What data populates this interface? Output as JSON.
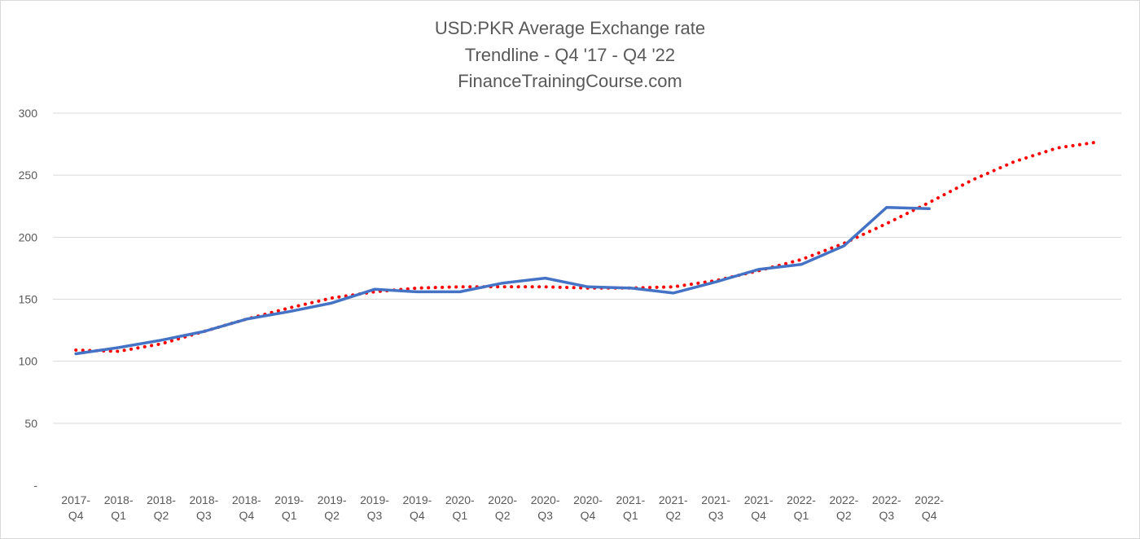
{
  "chart_data": {
    "type": "line",
    "title_lines": [
      "USD:PKR Average Exchange rate",
      "Trendline - Q4 '17 - Q4 '22",
      "FinanceTrainingCourse.com"
    ],
    "categories": [
      [
        "2017-",
        "Q4"
      ],
      [
        "2018-",
        "Q1"
      ],
      [
        "2018-",
        "Q2"
      ],
      [
        "2018-",
        "Q3"
      ],
      [
        "2018-",
        "Q4"
      ],
      [
        "2019-",
        "Q1"
      ],
      [
        "2019-",
        "Q2"
      ],
      [
        "2019-",
        "Q3"
      ],
      [
        "2019-",
        "Q4"
      ],
      [
        "2020-",
        "Q1"
      ],
      [
        "2020-",
        "Q2"
      ],
      [
        "2020-",
        "Q3"
      ],
      [
        "2020-",
        "Q4"
      ],
      [
        "2021-",
        "Q1"
      ],
      [
        "2021-",
        "Q2"
      ],
      [
        "2021-",
        "Q3"
      ],
      [
        "2021-",
        "Q4"
      ],
      [
        "2022-",
        "Q1"
      ],
      [
        "2022-",
        "Q2"
      ],
      [
        "2022-",
        "Q3"
      ],
      [
        "2022-",
        "Q4"
      ]
    ],
    "series": [
      {
        "color": "#4472c4",
        "values": [
          106,
          111,
          117,
          124,
          134,
          140,
          147,
          158,
          156,
          156,
          163,
          167,
          160,
          159,
          155,
          164,
          174,
          178,
          193,
          224,
          223
        ]
      }
    ],
    "trendline": {
      "type": "polynomial",
      "color": "#ff0000",
      "style": "dotted",
      "x": [
        0,
        1,
        2,
        3,
        4,
        5,
        6,
        7,
        8,
        9,
        10,
        11,
        12,
        13,
        14,
        15,
        16,
        17,
        18,
        19,
        20,
        21,
        22,
        23,
        24
      ],
      "values": [
        109,
        108,
        114,
        124,
        134,
        143,
        151,
        156,
        159,
        160,
        160,
        160,
        159,
        159,
        160,
        165,
        173,
        182,
        195,
        211,
        228,
        246,
        261,
        272,
        277
      ]
    },
    "y_ticks": [
      "-",
      "50",
      "100",
      "150",
      "200",
      "250",
      "300"
    ],
    "ylim": [
      0,
      300
    ],
    "grid": true,
    "legend": "none"
  }
}
